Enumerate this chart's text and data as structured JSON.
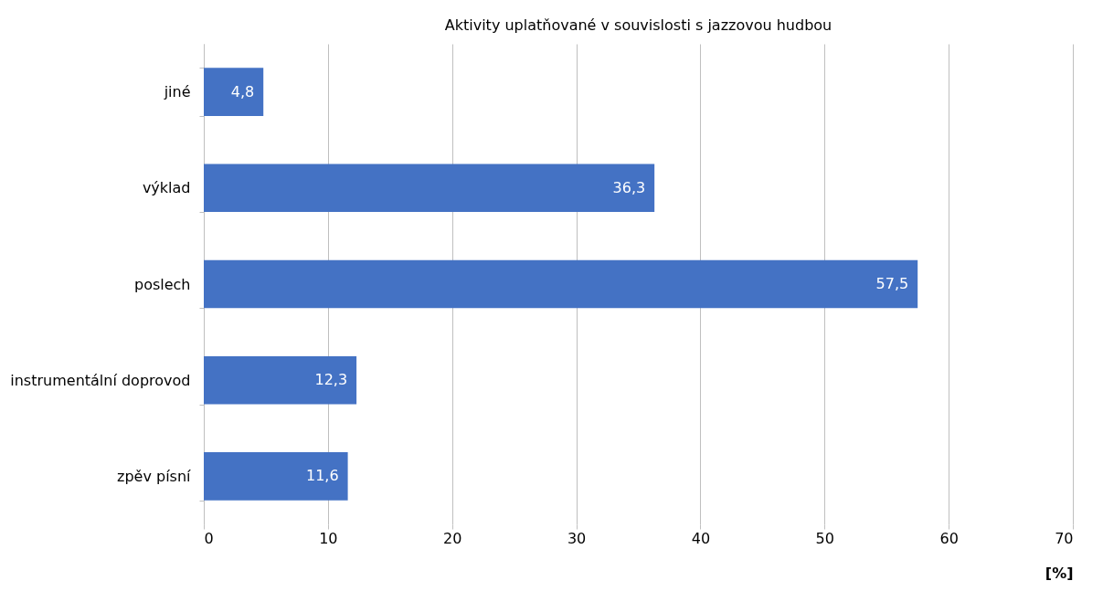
{
  "chart_data": {
    "type": "bar",
    "orientation": "horizontal",
    "title": "Aktivity uplatňované v souvislosti s jazzovou hudbou",
    "xlabel": "[%]",
    "categories": [
      "jiné",
      "výklad",
      "poslech",
      "instrumentální doprovod",
      "zpěv písní"
    ],
    "values": [
      4.8,
      36.3,
      57.5,
      12.3,
      11.6
    ],
    "value_labels": [
      "4,8",
      "36,3",
      "57,5",
      "12,3",
      "11,6"
    ],
    "color": "#4472c4",
    "xlim": [
      0,
      70
    ],
    "xticks": [
      0,
      10,
      20,
      30,
      40,
      50,
      60,
      70
    ],
    "grid": "x"
  }
}
